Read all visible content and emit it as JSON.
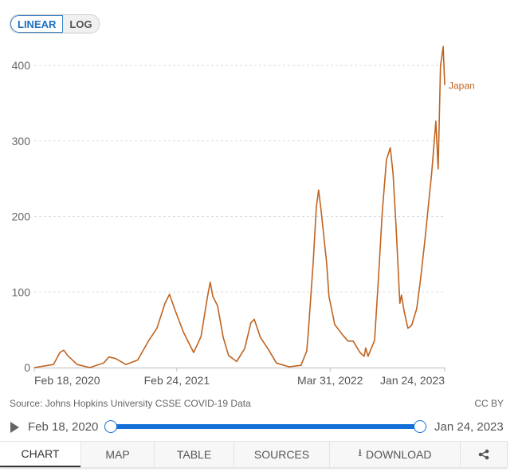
{
  "controls": {
    "linear_label": "LINEAR",
    "log_label": "LOG"
  },
  "chart_data": {
    "type": "line",
    "title": "",
    "xlabel": "",
    "ylabel": "",
    "x_unit": "days since Feb 18, 2020",
    "ylim": [
      0,
      400
    ],
    "xlim": [
      0,
      1071
    ],
    "yticks": [
      0,
      100,
      200,
      300,
      400
    ],
    "ytick_labels": [
      "0",
      "100",
      "200",
      "300",
      "400"
    ],
    "xticks": [
      {
        "day": 0,
        "label": "Feb 18, 2020"
      },
      {
        "day": 372,
        "label": "Feb 24, 2021"
      },
      {
        "day": 772,
        "label": "Mar 31, 2022"
      },
      {
        "day": 1071,
        "label": "Jan 24, 2023"
      }
    ],
    "grid": true,
    "series": [
      {
        "name": "Japan",
        "color": "#c0631f",
        "points": [
          [
            0,
            0
          ],
          [
            50,
            4
          ],
          [
            67,
            20
          ],
          [
            77,
            23
          ],
          [
            87,
            16
          ],
          [
            112,
            4
          ],
          [
            145,
            0
          ],
          [
            181,
            6
          ],
          [
            195,
            14
          ],
          [
            212,
            12
          ],
          [
            239,
            4
          ],
          [
            270,
            10
          ],
          [
            299,
            36
          ],
          [
            320,
            52
          ],
          [
            341,
            85
          ],
          [
            353,
            97
          ],
          [
            368,
            75
          ],
          [
            389,
            47
          ],
          [
            405,
            31
          ],
          [
            416,
            20
          ],
          [
            435,
            41
          ],
          [
            451,
            91
          ],
          [
            459,
            113
          ],
          [
            466,
            94
          ],
          [
            478,
            82
          ],
          [
            493,
            40
          ],
          [
            507,
            16
          ],
          [
            528,
            8
          ],
          [
            549,
            25
          ],
          [
            565,
            59
          ],
          [
            574,
            64
          ],
          [
            590,
            40
          ],
          [
            611,
            24
          ],
          [
            632,
            6
          ],
          [
            665,
            1
          ],
          [
            696,
            3
          ],
          [
            711,
            22
          ],
          [
            715,
            46
          ],
          [
            728,
            141
          ],
          [
            736,
            212
          ],
          [
            742,
            235
          ],
          [
            749,
            205
          ],
          [
            763,
            138
          ],
          [
            769,
            94
          ],
          [
            784,
            57
          ],
          [
            805,
            43
          ],
          [
            819,
            35
          ],
          [
            832,
            35
          ],
          [
            850,
            20
          ],
          [
            861,
            15
          ],
          [
            865,
            26
          ],
          [
            871,
            15
          ],
          [
            888,
            36
          ],
          [
            898,
            117
          ],
          [
            908,
            205
          ],
          [
            919,
            275
          ],
          [
            929,
            291
          ],
          [
            936,
            258
          ],
          [
            944,
            188
          ],
          [
            954,
            85
          ],
          [
            958,
            96
          ],
          [
            965,
            75
          ],
          [
            975,
            52
          ],
          [
            985,
            56
          ],
          [
            998,
            78
          ],
          [
            1008,
            117
          ],
          [
            1019,
            167
          ],
          [
            1037,
            258
          ],
          [
            1048,
            326
          ],
          [
            1054,
            263
          ],
          [
            1060,
            399
          ],
          [
            1067,
            425
          ],
          [
            1071,
            374
          ]
        ]
      }
    ]
  },
  "footer": {
    "source": "Source: Johns Hopkins University CSSE COVID-19 Data",
    "license": "CC BY"
  },
  "timeline": {
    "start": "Feb 18, 2020",
    "end": "Jan 24, 2023"
  },
  "tabs": [
    "CHART",
    "MAP",
    "TABLE",
    "SOURCES",
    "DOWNLOAD"
  ]
}
